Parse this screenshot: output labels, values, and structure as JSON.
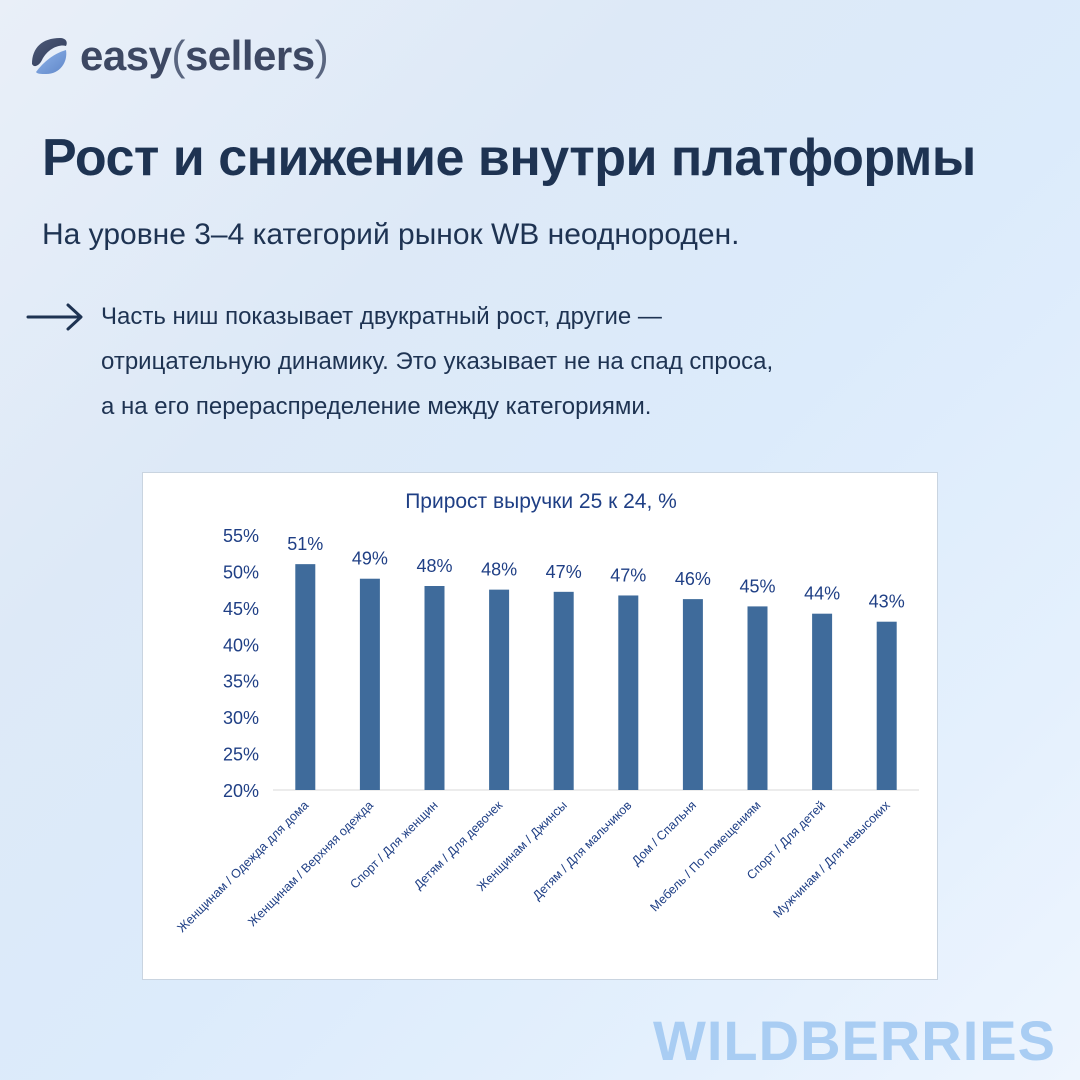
{
  "brand": {
    "logo_text": "easy",
    "logo_paren_open": "(",
    "logo_word": "sellers",
    "logo_paren_close": ")"
  },
  "header": {
    "title": "Рост и снижение внутри платформы",
    "subtitle": "На уровне 3–4 категорий рынок WB неоднороден."
  },
  "bullet": {
    "icon": "arrow-right-icon",
    "lines": [
      "Часть ниш показывает двукратный рост, другие —",
      "отрицательную динамику. Это указывает не на спад спроса,",
      "а на его перераспределение между категориями."
    ]
  },
  "chart_data": {
    "type": "bar",
    "title": "Прирост выручки 25 к 24, %",
    "categories": [
      "Женщинам / Одежда для дома",
      "Женщинам / Верхняя одежда",
      "Спорт / Для женщин",
      "Детям / Для девочек",
      "Женщинам / Джинсы",
      "Детям / Для мальчиков",
      "Дом / Спальня",
      "Мебель / По помещениям",
      "Спорт / Для детей",
      "Мужчинам / Для невысоких"
    ],
    "values": [
      51,
      49,
      48,
      47.5,
      47.2,
      46.7,
      46.2,
      45.2,
      44.2,
      43.1
    ],
    "data_labels": [
      "51%",
      "49%",
      "48%",
      "48%",
      "47%",
      "47%",
      "46%",
      "45%",
      "44%",
      "43%"
    ],
    "yticks": [
      "20%",
      "25%",
      "30%",
      "35%",
      "40%",
      "45%",
      "50%",
      "55%"
    ],
    "ylim": [
      20,
      55
    ],
    "bar_color": "#3f6b9b",
    "text_color": "#1f3f85",
    "grid": false,
    "legend": "none"
  },
  "watermark": "WILDBERRIES",
  "colors": {
    "heading": "#1e3352",
    "watermark": "#a9cdf3"
  }
}
